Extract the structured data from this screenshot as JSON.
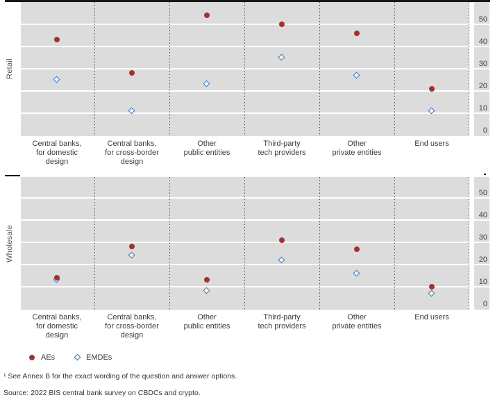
{
  "chart_data": {
    "type": "scatter",
    "title": "",
    "categories": [
      [
        "Central banks,",
        "for domestic",
        "design"
      ],
      [
        "Central banks,",
        "for cross-border",
        "design"
      ],
      [
        "Other",
        "public entities"
      ],
      [
        "Third-party",
        "tech providers"
      ],
      [
        "Other",
        "private entities"
      ],
      [
        "End users"
      ]
    ],
    "panels": [
      {
        "label": "Retail",
        "series": [
          {
            "name": "AEs",
            "values": [
              43,
              28,
              54,
              50,
              46,
              21
            ]
          },
          {
            "name": "EMDEs",
            "values": [
              25,
              11,
              23,
              35,
              27,
              11
            ]
          }
        ]
      },
      {
        "label": "Wholesale",
        "series": [
          {
            "name": "AEs",
            "values": [
              14,
              28,
              13,
              31,
              27,
              10
            ]
          },
          {
            "name": "EMDEs",
            "values": [
              13,
              24,
              8,
              22,
              16,
              7
            ]
          }
        ]
      }
    ],
    "y_ticks": [
      0,
      10,
      20,
      30,
      40,
      50
    ],
    "ylim": [
      0,
      60
    ],
    "grid": true,
    "legend_position": "bottom-left",
    "legend": [
      {
        "label": "AEs",
        "marker": "circle",
        "color": "#a2322e"
      },
      {
        "label": "EMDEs",
        "marker": "diamond",
        "color": "#3d76bb"
      }
    ],
    "colors": {
      "panel_bg": "#dcdcdc",
      "gridline": "#ffffff",
      "separator": "#4a4a4a",
      "rule": "#161616"
    }
  },
  "footnote": "¹ See Annex B for the exact wording of the question and answer options.",
  "source": "Source: 2022 BIS central bank survey on CBDCs and crypto."
}
